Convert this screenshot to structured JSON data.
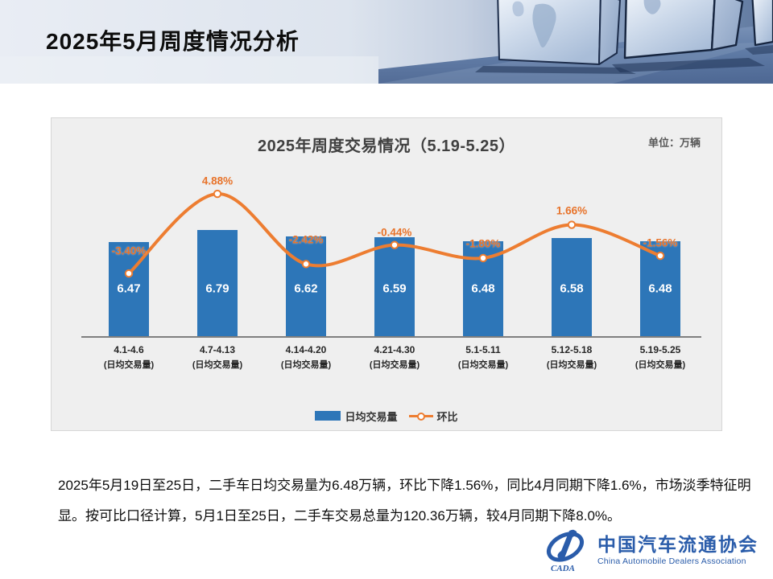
{
  "slide": {
    "title": "2025年5月周度情况分析",
    "body_lines": [
      "2025年5月19日至25日，二手车日均交易量为6.48万辆，环比下降1.56%，同比4月同期下降1.6%，市场淡季特征明",
      "显。按可比口径计算，5月1日至25日，二手车交易总量为120.36万辆，较4月同期下降8.0%。"
    ]
  },
  "chart_data": {
    "type": "bar",
    "title": "2025年周度交易情况（5.19-5.25）",
    "unit_label": "单位：万辆",
    "categories": [
      "4.1-4.6",
      "4.7-4.13",
      "4.14-4.20",
      "4.21-4.30",
      "5.1-5.11",
      "5.12-5.18",
      "5.19-5.25"
    ],
    "category_sublabel": "(日均交易量)",
    "series": [
      {
        "name": "日均交易量",
        "type": "bar",
        "values": [
          6.47,
          6.79,
          6.62,
          6.59,
          6.48,
          6.58,
          6.48
        ],
        "color": "#2d76b8"
      },
      {
        "name": "环比",
        "type": "line",
        "values": [
          -3.4,
          4.88,
          -2.42,
          -0.44,
          -1.8,
          1.66,
          -1.56
        ],
        "labels": [
          "-3.40%",
          "4.88%",
          "-2.42%",
          "-0.44%",
          "-1.80%",
          "1.66%",
          "-1.56%"
        ],
        "color": "#ed7d31"
      }
    ],
    "legend": [
      "日均交易量",
      "环比"
    ],
    "legend_position": "bottom",
    "grid": false,
    "bar_axis_implied_range": [
      3.8,
      7.5
    ],
    "pct_axis_implied_range": [
      -5,
      6
    ]
  },
  "logo": {
    "acronym": "CADA",
    "name_cn": "中国汽车流通协会",
    "name_en": "China Automobile Dealers Association",
    "color": "#2a5caa"
  }
}
